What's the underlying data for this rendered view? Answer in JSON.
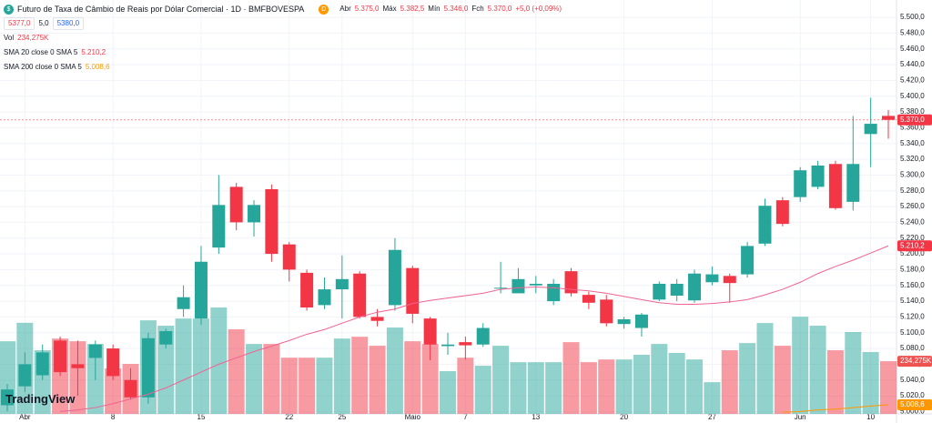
{
  "chart_data": {
    "type": "candlestick",
    "title": "Futuro de Taxa de Câmbio de Reais por Dólar Comercial · 1D · BMFBOVESPA",
    "badge": "D",
    "ohlc_legend": [
      {
        "key": "Abr",
        "value": "5.375,0"
      },
      {
        "key": "Máx",
        "value": "5.382,5"
      },
      {
        "key": "Mín",
        "value": "5.346,0"
      },
      {
        "key": "Fch",
        "value": "5.370,0"
      }
    ],
    "change": "+5,0 (+0,09%)",
    "buttons": [
      "5377,0",
      "5,0",
      "5380,0"
    ],
    "volume_legend": {
      "name": "Vol",
      "value": "234,275K"
    },
    "logo": "TradingView",
    "categories": [
      null,
      "Abr",
      null,
      null,
      null,
      null,
      "8",
      null,
      null,
      null,
      null,
      "15",
      null,
      null,
      null,
      null,
      "22",
      null,
      null,
      "25",
      null,
      null,
      null,
      "Maio",
      null,
      null,
      "7",
      null,
      null,
      null,
      "13",
      null,
      null,
      null,
      null,
      "20",
      null,
      null,
      null,
      null,
      "27",
      null,
      null,
      null,
      null,
      "Jun",
      null,
      null,
      null,
      "10",
      null
    ],
    "open": [
      5008,
      5032,
      5046,
      5090,
      5060,
      5068,
      5080,
      5040,
      5018,
      5085,
      5130,
      5118,
      5208,
      5285,
      5240,
      5282,
      5212,
      5176,
      5135,
      5155,
      5175,
      5120,
      5135,
      5182,
      5118,
      5083,
      5088,
      5085,
      5157,
      5150,
      5160,
      5140,
      5178,
      5148,
      5142,
      5111,
      5106,
      5142,
      5147,
      5141,
      5164,
      5172,
      5174,
      5213,
      5268,
      5272,
      5285,
      5314,
      5266,
      5352,
      5375
    ],
    "high": [
      5035,
      5075,
      5085,
      5095,
      5090,
      5090,
      5085,
      5055,
      5100,
      5105,
      5160,
      5210,
      5300,
      5290,
      5268,
      5288,
      5215,
      5180,
      5170,
      5198,
      5178,
      5130,
      5220,
      5185,
      5120,
      5100,
      5095,
      5112,
      5190,
      5182,
      5172,
      5168,
      5182,
      5152,
      5148,
      5120,
      5125,
      5165,
      5168,
      5180,
      5184,
      5175,
      5215,
      5270,
      5272,
      5310,
      5318,
      5318,
      5375,
      5398,
      5382.5
    ],
    "low": [
      5000,
      5025,
      5040,
      5045,
      5020,
      5040,
      5040,
      5015,
      5010,
      5080,
      5120,
      5110,
      5200,
      5230,
      5222,
      5190,
      5165,
      5128,
      5130,
      5118,
      5118,
      5108,
      5128,
      5112,
      5065,
      5072,
      5066,
      5082,
      5150,
      5150,
      5150,
      5135,
      5146,
      5130,
      5108,
      5105,
      5095,
      5140,
      5140,
      5138,
      5160,
      5138,
      5170,
      5210,
      5235,
      5266,
      5282,
      5256,
      5255,
      5310,
      5346
    ],
    "close": [
      5028,
      5060,
      5075,
      5050,
      5055,
      5085,
      5045,
      5018,
      5093,
      5102,
      5145,
      5190,
      5262,
      5240,
      5262,
      5200,
      5180,
      5132,
      5155,
      5168,
      5120,
      5115,
      5205,
      5124,
      5085,
      5085,
      5084,
      5106,
      5157,
      5168,
      5162,
      5162,
      5150,
      5138,
      5112,
      5117,
      5123,
      5162,
      5162,
      5175,
      5174,
      5163,
      5210,
      5261,
      5238,
      5306,
      5312,
      5258,
      5314,
      5365,
      5370
    ],
    "up_color": "#26a69a",
    "down_color": "#f23645",
    "volume": [
      323,
      405,
      283,
      335,
      323,
      311,
      202,
      222,
      416,
      392,
      424,
      424,
      473,
      376,
      311,
      311,
      250,
      250,
      250,
      335,
      343,
      303,
      384,
      323,
      311,
      190,
      250,
      214,
      303,
      230,
      230,
      230,
      319,
      230,
      242,
      242,
      263,
      311,
      271,
      242,
      141,
      283,
      315,
      404,
      303,
      432,
      392,
      283,
      364,
      275,
      234.275
    ],
    "volume_labels": {
      "50": "234,275K"
    },
    "vlim": [
      0,
      1840
    ],
    "series": [
      {
        "name": "SMA 20 close 0 SMA 5",
        "value_label": "5.210,2",
        "color": "#f06292",
        "values": [
          null,
          null,
          null,
          5000,
          5002,
          5005,
          5010,
          5016,
          5022,
          5030,
          5040,
          5050,
          5060,
          5068,
          5076,
          5083,
          5090,
          5098,
          5104,
          5112,
          5120,
          5126,
          5130,
          5137,
          5141,
          5144,
          5147,
          5150,
          5155,
          5157,
          5158,
          5157,
          5155,
          5153,
          5150,
          5146,
          5142,
          5138,
          5136,
          5136,
          5137,
          5139,
          5142,
          5148,
          5155,
          5164,
          5175,
          5184,
          5192,
          5201,
          5210.2
        ]
      },
      {
        "name": "SMA 200 close 0 SMA 5",
        "value_label": "5.008,6",
        "color": "#ff9800",
        "values": [
          null,
          null,
          null,
          null,
          null,
          null,
          null,
          null,
          null,
          null,
          null,
          null,
          null,
          null,
          null,
          null,
          null,
          null,
          null,
          null,
          null,
          null,
          null,
          null,
          null,
          null,
          null,
          null,
          null,
          null,
          null,
          null,
          null,
          null,
          null,
          null,
          null,
          null,
          null,
          null,
          null,
          null,
          null,
          null,
          4999,
          5000,
          5002,
          5003,
          5005,
          5007,
          5008.6
        ]
      }
    ],
    "last_price": {
      "value": 5370,
      "label": "5.370,0"
    },
    "ylim": [
      4997,
      5522
    ],
    "yticks": [
      {
        "value": 5000,
        "label": "5.000,0"
      },
      {
        "value": 5020,
        "label": "5.020,0"
      },
      {
        "value": 5040,
        "label": "5.040,0"
      },
      {
        "value": 5060,
        "label": "5.060,0"
      },
      {
        "value": 5080,
        "label": "5.080,0"
      },
      {
        "value": 5100,
        "label": "5.100,0"
      },
      {
        "value": 5120,
        "label": "5.120,0"
      },
      {
        "value": 5140,
        "label": "5.140,0"
      },
      {
        "value": 5160,
        "label": "5.160,0"
      },
      {
        "value": 5180,
        "label": "5.180,0"
      },
      {
        "value": 5200,
        "label": "5.200,0"
      },
      {
        "value": 5220,
        "label": "5.220,0"
      },
      {
        "value": 5240,
        "label": "5.240,0"
      },
      {
        "value": 5260,
        "label": "5.260,0"
      },
      {
        "value": 5280,
        "label": "5.280,0"
      },
      {
        "value": 5300,
        "label": "5.300,0"
      },
      {
        "value": 5320,
        "label": "5.320,0"
      },
      {
        "value": 5340,
        "label": "5.340,0"
      },
      {
        "value": 5360,
        "label": "5.360,0"
      },
      {
        "value": 5380,
        "label": "5.380,0"
      },
      {
        "value": 5400,
        "label": "5.400,0"
      },
      {
        "value": 5420,
        "label": "5.420,0"
      },
      {
        "value": 5440,
        "label": "5.440,0"
      },
      {
        "value": 5460,
        "label": "5.460,0"
      },
      {
        "value": 5480,
        "label": "5.480,0"
      },
      {
        "value": 5500,
        "label": "5.500,0"
      }
    ],
    "grid": true
  }
}
